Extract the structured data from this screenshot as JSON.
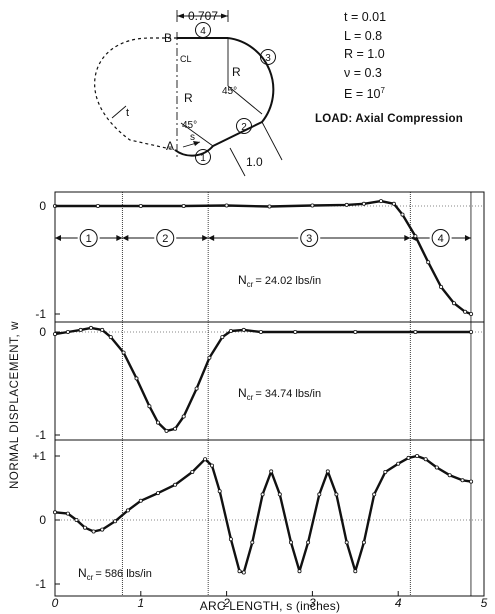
{
  "sketch": {
    "dim_top": "0.707",
    "dim_side": "1.0",
    "label_B": "B",
    "label_A": "A",
    "label_CL": "CL",
    "label_t": "t",
    "label_s": "s",
    "label_R_upper": "R",
    "label_R_lower": "R",
    "angle_upper": "45°",
    "angle_lower": "45°",
    "segments": [
      "1",
      "2",
      "3",
      "4"
    ]
  },
  "parameters": [
    {
      "name": "t",
      "value": "0.01"
    },
    {
      "name": "L",
      "value": "0.8"
    },
    {
      "name": "R",
      "value": "1.0"
    },
    {
      "name": "ν",
      "value": "0.3"
    },
    {
      "name": "E",
      "value": "10",
      "exp": "7"
    }
  ],
  "load_label": "LOAD: Axial Compression",
  "chart_data": {
    "type": "line",
    "xlabel": "ARC LENGTH, s (inches)",
    "ylabel": "NORMAL DISPLACEMENT, w",
    "x_ticks": [
      "0",
      "1",
      "2",
      "3",
      "4",
      "5"
    ],
    "xlim": [
      0,
      5
    ],
    "segment_boundaries": [
      0.785,
      1.785,
      4.141,
      4.848
    ],
    "segment_labels": [
      "1",
      "2",
      "3",
      "4"
    ],
    "panels": [
      {
        "ylim": [
          -1,
          0
        ],
        "y_ticks": [
          "0",
          "-1"
        ],
        "annotation": {
          "prefix": "N",
          "sub": "cr",
          "text": "= 24.02 lbs/in"
        },
        "points": [
          [
            0,
            0
          ],
          [
            0.5,
            0
          ],
          [
            1,
            0
          ],
          [
            1.5,
            0
          ],
          [
            2,
            0.005
          ],
          [
            2.5,
            -0.005
          ],
          [
            3,
            0.005
          ],
          [
            3.4,
            0.01
          ],
          [
            3.6,
            0.02
          ],
          [
            3.8,
            0.045
          ],
          [
            3.95,
            0.02
          ],
          [
            4.05,
            -0.08
          ],
          [
            4.2,
            -0.28
          ],
          [
            4.35,
            -0.52
          ],
          [
            4.5,
            -0.75
          ],
          [
            4.65,
            -0.9
          ],
          [
            4.78,
            -0.98
          ],
          [
            4.85,
            -1
          ]
        ]
      },
      {
        "ylim": [
          -1,
          0
        ],
        "y_ticks": [
          "0",
          "-1"
        ],
        "annotation": {
          "prefix": "N",
          "sub": "cr",
          "text": "= 34.74 lbs/in"
        },
        "points": [
          [
            0,
            -0.02
          ],
          [
            0.15,
            0
          ],
          [
            0.3,
            0.02
          ],
          [
            0.42,
            0.04
          ],
          [
            0.55,
            0.02
          ],
          [
            0.65,
            -0.05
          ],
          [
            0.8,
            -0.2
          ],
          [
            0.95,
            -0.45
          ],
          [
            1.1,
            -0.72
          ],
          [
            1.2,
            -0.88
          ],
          [
            1.3,
            -0.96
          ],
          [
            1.4,
            -0.94
          ],
          [
            1.5,
            -0.82
          ],
          [
            1.65,
            -0.55
          ],
          [
            1.8,
            -0.25
          ],
          [
            1.95,
            -0.05
          ],
          [
            2.05,
            0.01
          ],
          [
            2.2,
            0.02
          ],
          [
            2.4,
            0
          ],
          [
            2.8,
            0
          ],
          [
            3.5,
            0
          ],
          [
            4.2,
            0
          ],
          [
            4.85,
            0
          ]
        ]
      },
      {
        "ylim": [
          -1,
          1
        ],
        "y_ticks": [
          "+1",
          "0",
          "-1"
        ],
        "annotation": {
          "prefix": "N",
          "sub": "cr",
          "text": "= 586 lbs/in"
        },
        "points": [
          [
            0,
            0.12
          ],
          [
            0.15,
            0.1
          ],
          [
            0.25,
            0
          ],
          [
            0.35,
            -0.12
          ],
          [
            0.45,
            -0.18
          ],
          [
            0.55,
            -0.15
          ],
          [
            0.7,
            -0.02
          ],
          [
            0.85,
            0.15
          ],
          [
            1,
            0.3
          ],
          [
            1.2,
            0.42
          ],
          [
            1.4,
            0.55
          ],
          [
            1.6,
            0.75
          ],
          [
            1.75,
            0.95
          ],
          [
            1.83,
            0.85
          ],
          [
            1.92,
            0.45
          ],
          [
            2.05,
            -0.3
          ],
          [
            2.15,
            -0.8
          ],
          [
            2.2,
            -0.82
          ],
          [
            2.3,
            -0.35
          ],
          [
            2.42,
            0.4
          ],
          [
            2.52,
            0.76
          ],
          [
            2.62,
            0.4
          ],
          [
            2.75,
            -0.35
          ],
          [
            2.85,
            -0.8
          ],
          [
            2.95,
            -0.35
          ],
          [
            3.08,
            0.4
          ],
          [
            3.18,
            0.76
          ],
          [
            3.28,
            0.4
          ],
          [
            3.4,
            -0.35
          ],
          [
            3.5,
            -0.8
          ],
          [
            3.6,
            -0.35
          ],
          [
            3.72,
            0.4
          ],
          [
            3.85,
            0.75
          ],
          [
            4,
            0.88
          ],
          [
            4.12,
            0.97
          ],
          [
            4.22,
            1
          ],
          [
            4.32,
            0.95
          ],
          [
            4.45,
            0.82
          ],
          [
            4.6,
            0.7
          ],
          [
            4.75,
            0.62
          ],
          [
            4.85,
            0.6
          ]
        ]
      }
    ]
  }
}
